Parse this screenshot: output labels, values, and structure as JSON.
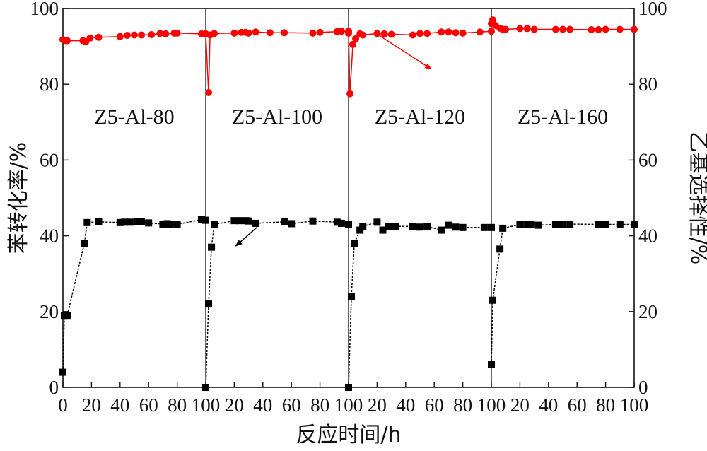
{
  "chart_data": {
    "type": "line",
    "xlabel": "反应时间/h",
    "ylabel_left": "苯转化率/%",
    "ylabel_right": "乙基选择性/%",
    "ylim": [
      0,
      100
    ],
    "yticks": [
      0,
      20,
      40,
      60,
      80,
      100
    ],
    "panel_xlim": [
      0,
      100
    ],
    "xtick_labels": [
      "0",
      "20",
      "40",
      "60",
      "80",
      "100",
      "20",
      "40",
      "60",
      "80",
      "100",
      "20",
      "40",
      "60",
      "80",
      "100",
      "20",
      "40",
      "60",
      "80",
      "100"
    ],
    "colors": {
      "conversion": "#000000",
      "selectivity": "#ff0000"
    },
    "panels": [
      {
        "label": "Z5-Al-80",
        "conversion": {
          "x": [
            0,
            1,
            3,
            15,
            17,
            25,
            40,
            43,
            47,
            52,
            55,
            60,
            70,
            73,
            75,
            80,
            97,
            100
          ],
          "y": [
            4,
            19,
            19,
            38,
            43.5,
            43.7,
            43.5,
            43.6,
            43.6,
            43.7,
            43.7,
            43.4,
            43.1,
            43.2,
            43,
            43,
            44.3,
            44.1
          ]
        },
        "selectivity": {
          "x": [
            0,
            2,
            3,
            14,
            16,
            19,
            25,
            40,
            45,
            50,
            55,
            62,
            68,
            72,
            78,
            80,
            97,
            100
          ],
          "y": [
            91.8,
            91.5,
            91.5,
            91.5,
            91.2,
            92.2,
            92.4,
            92.6,
            92.9,
            93,
            93,
            93.1,
            93.4,
            93.3,
            93.5,
            93.5,
            93.3,
            93.3
          ]
        }
      },
      {
        "label": "Z5-Al-100",
        "conversion": {
          "x": [
            0,
            2,
            4,
            6,
            20,
            24,
            28,
            30,
            35,
            55,
            60,
            75,
            92,
            95,
            100
          ],
          "y": [
            0,
            22,
            37,
            43,
            44,
            44,
            44,
            43.9,
            43.3,
            43.7,
            43.2,
            43.9,
            43.6,
            43.3,
            43
          ]
        },
        "selectivity": {
          "x": [
            0,
            2,
            3,
            6,
            20,
            25,
            28,
            30,
            35,
            45,
            55,
            75,
            80,
            92,
            95,
            100
          ],
          "y": [
            93.3,
            77.8,
            93,
            93.4,
            93.5,
            93.7,
            93.7,
            93.5,
            93.8,
            93.6,
            93.6,
            93.5,
            93.7,
            93.9,
            94,
            94
          ]
        }
      },
      {
        "label": "Z5-Al-120",
        "conversion": {
          "x": [
            0,
            2,
            4,
            8,
            10,
            20,
            24,
            28,
            33,
            45,
            50,
            55,
            65,
            70,
            75,
            80,
            95,
            100
          ],
          "y": [
            0,
            24,
            38,
            41.5,
            42.5,
            43.6,
            41.5,
            42.5,
            42.5,
            42.5,
            42.3,
            42.5,
            41.5,
            42.8,
            42.3,
            42.2,
            42.2,
            42.2
          ]
        },
        "selectivity": {
          "x": [
            0,
            1,
            3,
            5,
            8,
            10,
            20,
            25,
            30,
            45,
            50,
            55,
            65,
            70,
            75,
            80,
            92,
            100
          ],
          "y": [
            93.5,
            77.5,
            90.5,
            92,
            93.3,
            93,
            93.4,
            93.3,
            93.2,
            93,
            93.4,
            93.4,
            93.8,
            93.8,
            93.6,
            93.5,
            93.8,
            94
          ]
        }
      },
      {
        "label": "Z5-Al-160",
        "conversion": {
          "x": [
            0,
            1,
            6,
            8,
            20,
            25,
            28,
            33,
            45,
            50,
            55,
            75,
            80,
            90,
            100
          ],
          "y": [
            6,
            23,
            36.5,
            42,
            43,
            43,
            43,
            42.8,
            43,
            43,
            43.1,
            43,
            43,
            43,
            43
          ]
        },
        "selectivity": {
          "x": [
            0,
            1,
            3,
            6,
            8,
            10,
            20,
            25,
            30,
            45,
            50,
            55,
            70,
            75,
            80,
            90,
            100
          ],
          "y": [
            96,
            97,
            95.5,
            94.8,
            94.5,
            94.5,
            94.7,
            94.7,
            94.5,
            94.5,
            94.5,
            94.5,
            94.4,
            94.4,
            94.5,
            94.5,
            94.5
          ]
        }
      }
    ]
  }
}
